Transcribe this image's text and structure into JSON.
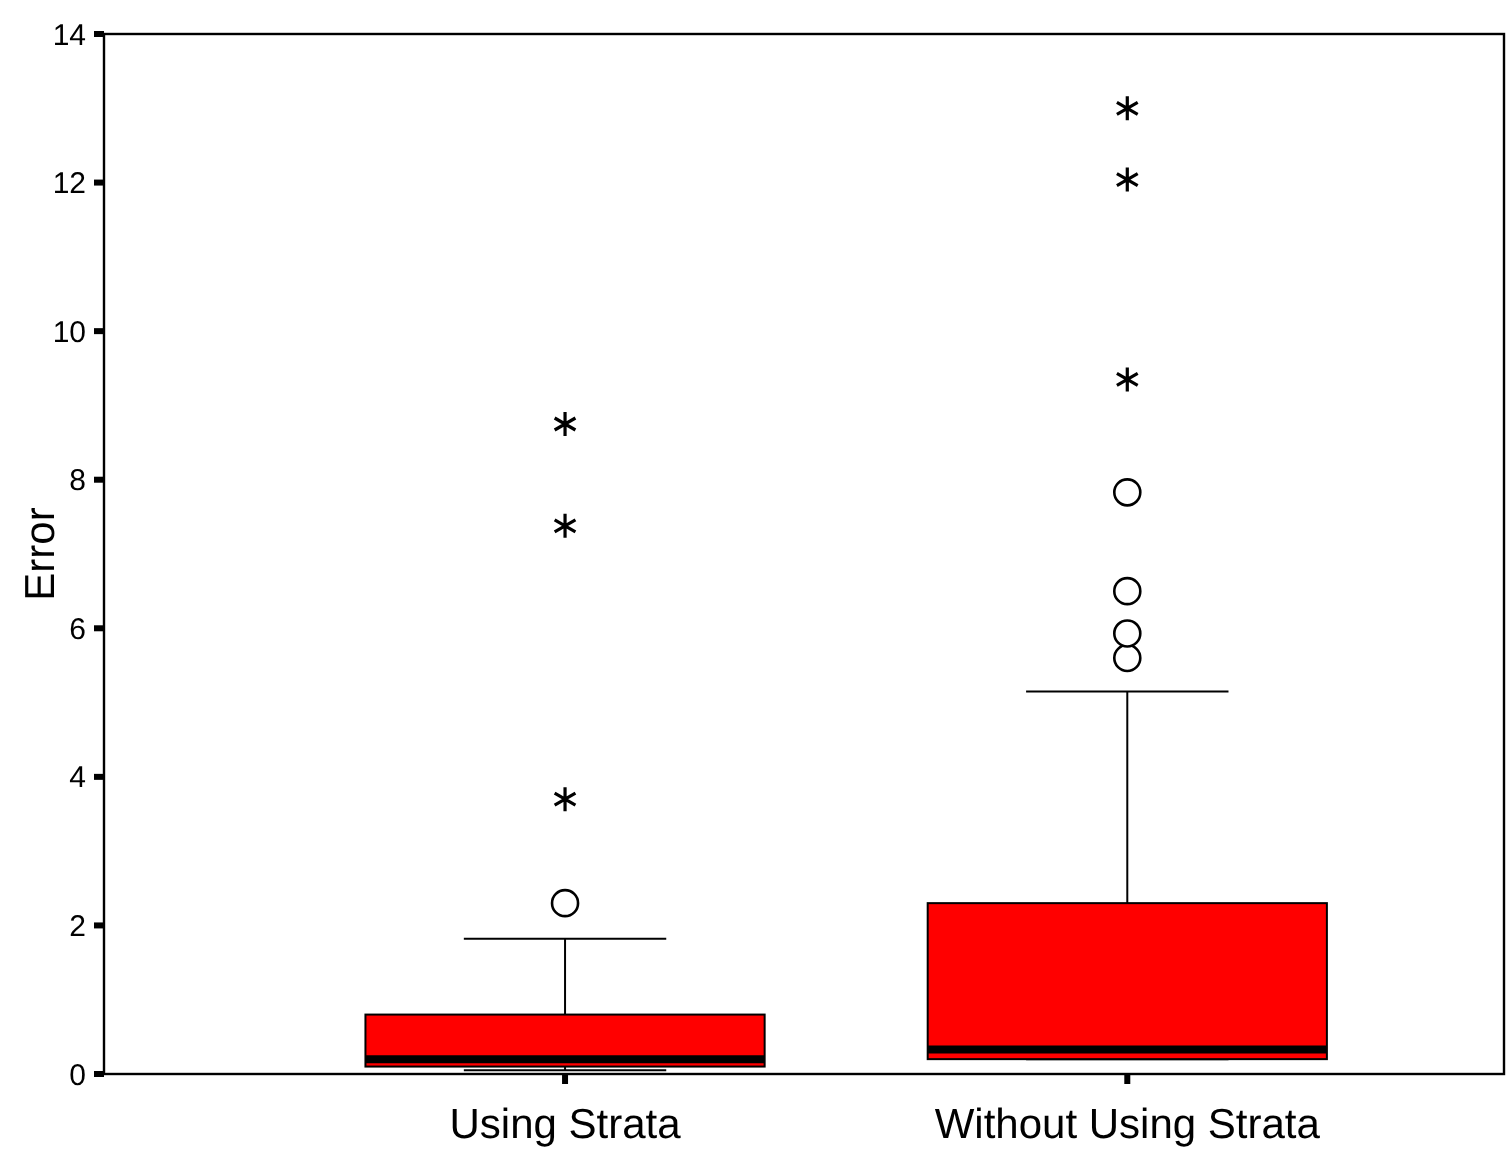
{
  "chart_data": {
    "type": "box",
    "ylabel": "Error",
    "categories": [
      "Using Strata",
      "Without Using Strata"
    ],
    "ylim": [
      0,
      14
    ],
    "yticks": [
      0,
      2,
      4,
      6,
      8,
      10,
      12,
      14
    ],
    "grid": false,
    "series": [
      {
        "color": "#ff0000",
        "boxes": [
          {
            "low": 0.05,
            "q1": 0.1,
            "median": 0.2,
            "q3": 0.8,
            "high": 1.82,
            "outliers": [
              2.3
            ]
          },
          {
            "low": 0.2,
            "q1": 0.2,
            "median": 0.33,
            "q3": 2.3,
            "high": 5.15,
            "outliers": [
              5.6,
              5.93,
              6.5,
              7.83
            ]
          }
        ]
      },
      {
        "type": "scatter",
        "marker": "cross",
        "color": "#000000",
        "x": [
          "Using Strata",
          "Using Strata",
          "Using Strata",
          "Without Using Strata",
          "Without Using Strata",
          "Without Using Strata"
        ],
        "values": [
          3.7,
          7.38,
          8.75,
          9.35,
          12.04,
          13
        ]
      }
    ]
  }
}
